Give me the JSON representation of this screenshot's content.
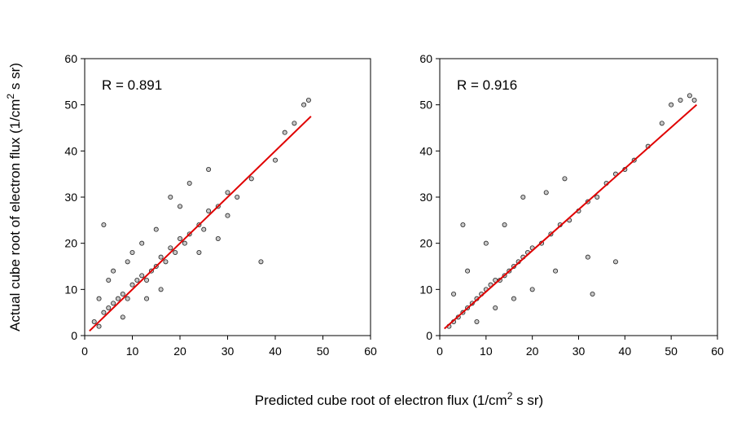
{
  "chart_data": [
    {
      "type": "scatter",
      "annotation": "R = 0.891",
      "xlabel": [
        "Predicted cube root of electron flux  (1/cm",
        "2",
        " s sr)"
      ],
      "ylabel": [
        "Actual cube root of electron flux  (1/cm",
        "2",
        " s sr)"
      ],
      "xlim": [
        0,
        60
      ],
      "ylim": [
        0,
        60
      ],
      "xticks": [
        0,
        10,
        20,
        30,
        40,
        50,
        60
      ],
      "yticks": [
        0,
        10,
        20,
        30,
        40,
        50,
        60
      ],
      "series": [
        {
          "type": "scatter",
          "color": "#c8c8c8",
          "x": [
            2,
            3,
            4,
            5,
            6,
            7,
            8,
            9,
            10,
            11,
            12,
            13,
            14,
            15,
            16,
            17,
            18,
            19,
            20,
            21,
            22,
            24,
            25,
            26,
            28,
            30,
            32,
            35,
            37,
            40,
            42,
            44,
            46,
            47,
            3,
            5,
            8,
            10,
            12,
            15,
            18,
            22,
            26,
            30,
            4,
            6,
            9,
            13,
            16,
            20,
            24,
            28
          ],
          "y": [
            3,
            2,
            5,
            6,
            7,
            8,
            9,
            8,
            11,
            12,
            13,
            12,
            14,
            15,
            17,
            16,
            19,
            18,
            21,
            20,
            22,
            24,
            23,
            27,
            28,
            31,
            30,
            34,
            16,
            38,
            44,
            46,
            50,
            51,
            8,
            12,
            4,
            18,
            20,
            23,
            30,
            33,
            36,
            26,
            24,
            14,
            16,
            8,
            10,
            28,
            18,
            21
          ]
        },
        {
          "type": "line",
          "color": "#e00000",
          "x": [
            1,
            47.5
          ],
          "y": [
            1,
            47.5
          ]
        }
      ]
    },
    {
      "type": "scatter",
      "annotation": "R = 0.916",
      "xlim": [
        0,
        60
      ],
      "ylim": [
        0,
        60
      ],
      "xticks": [
        0,
        10,
        20,
        30,
        40,
        50,
        60
      ],
      "yticks": [
        0,
        10,
        20,
        30,
        40,
        50,
        60
      ],
      "series": [
        {
          "type": "scatter",
          "color": "#c8c8c8",
          "x": [
            2,
            3,
            4,
            5,
            6,
            7,
            8,
            9,
            10,
            11,
            12,
            13,
            14,
            15,
            16,
            17,
            18,
            19,
            20,
            22,
            24,
            26,
            28,
            30,
            32,
            34,
            36,
            38,
            40,
            42,
            45,
            48,
            50,
            52,
            54,
            55,
            3,
            6,
            10,
            14,
            18,
            23,
            27,
            33,
            5,
            8,
            12,
            16,
            20,
            25,
            32,
            38
          ],
          "y": [
            2,
            3,
            4,
            5,
            6,
            7,
            8,
            9,
            10,
            11,
            12,
            12,
            13,
            14,
            15,
            16,
            17,
            18,
            19,
            20,
            22,
            24,
            25,
            27,
            29,
            30,
            33,
            35,
            36,
            38,
            41,
            46,
            50,
            51,
            52,
            51,
            9,
            14,
            20,
            24,
            30,
            31,
            34,
            9,
            24,
            3,
            6,
            8,
            10,
            14,
            17,
            16
          ]
        },
        {
          "type": "line",
          "color": "#e00000",
          "x": [
            1,
            55.5
          ],
          "y": [
            1.5,
            50
          ]
        }
      ]
    }
  ]
}
